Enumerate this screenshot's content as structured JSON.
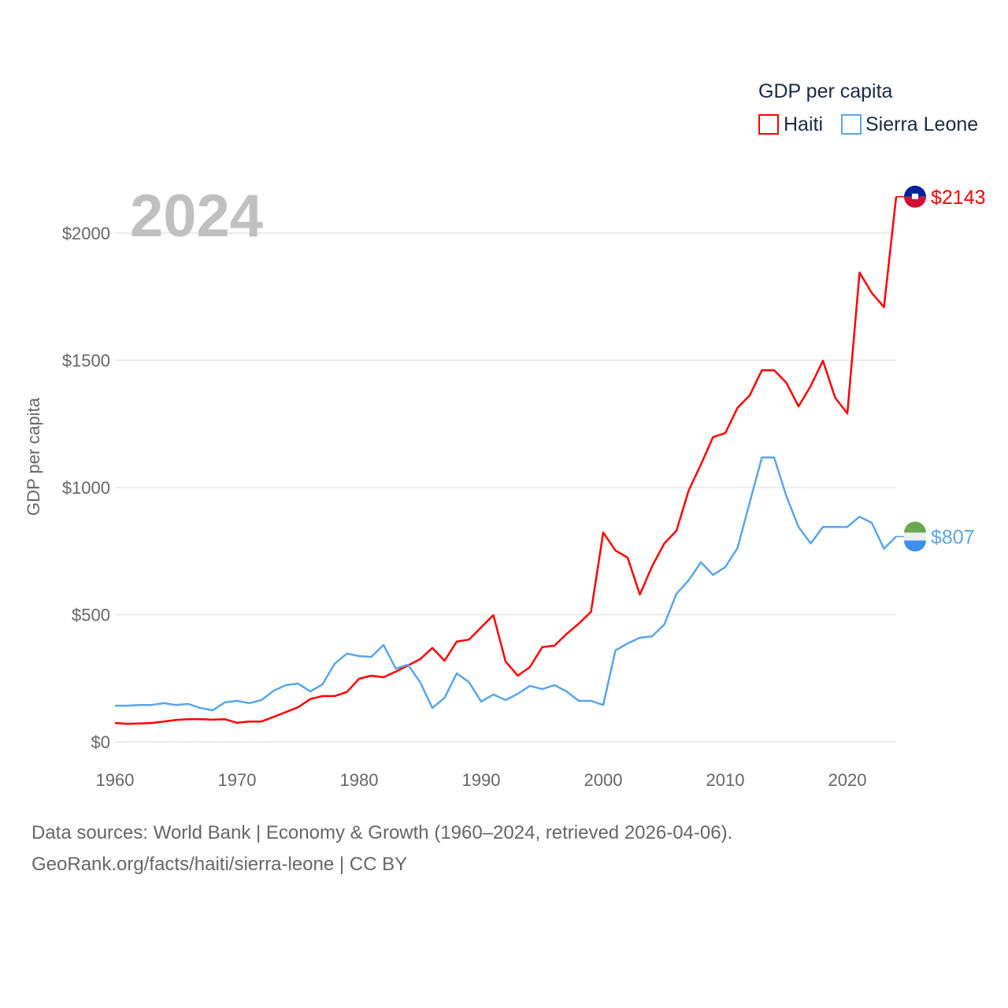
{
  "chart_data": {
    "type": "line",
    "title": "GDP per capita",
    "ylabel": "GDP per capita",
    "xlabel": "",
    "year_label": "2024",
    "xlim": [
      1960,
      2024
    ],
    "ylim": [
      0,
      2200
    ],
    "x_ticks": [
      1960,
      1970,
      1980,
      1990,
      2000,
      2010,
      2020
    ],
    "y_ticks": [
      0,
      500,
      1000,
      1500,
      2000
    ],
    "y_tick_labels": [
      "$0",
      "$500",
      "$1000",
      "$1500",
      "$2000"
    ],
    "grid": true,
    "legend_position": "top-right",
    "x": [
      1960,
      1961,
      1962,
      1963,
      1964,
      1965,
      1966,
      1967,
      1968,
      1969,
      1970,
      1971,
      1972,
      1973,
      1974,
      1975,
      1976,
      1977,
      1978,
      1979,
      1980,
      1981,
      1982,
      1983,
      1984,
      1985,
      1986,
      1987,
      1988,
      1989,
      1990,
      1991,
      1992,
      1993,
      1994,
      1995,
      1996,
      1997,
      1998,
      1999,
      2000,
      2001,
      2002,
      2003,
      2004,
      2005,
      2006,
      2007,
      2008,
      2009,
      2010,
      2011,
      2012,
      2013,
      2014,
      2015,
      2016,
      2017,
      2018,
      2019,
      2020,
      2021,
      2022,
      2023,
      2024
    ],
    "series": [
      {
        "name": "Haiti",
        "color": "#ff0000",
        "end_label": "$2143",
        "values": [
          74,
          71,
          72,
          74,
          80,
          86,
          89,
          89,
          87,
          89,
          75,
          80,
          80,
          98,
          117,
          136,
          168,
          180,
          180,
          196,
          248,
          260,
          254,
          276,
          300,
          325,
          369,
          319,
          394,
          402,
          450,
          498,
          316,
          260,
          294,
          372,
          378,
          424,
          465,
          511,
          823,
          752,
          724,
          579,
          690,
          780,
          830,
          988,
          1090,
          1198,
          1214,
          1313,
          1362,
          1461,
          1461,
          1412,
          1319,
          1399,
          1498,
          1353,
          1291,
          1845,
          1765,
          1709,
          2143
        ]
      },
      {
        "name": "Sierra Leone",
        "color": "#5aa5e8",
        "end_label": "$807",
        "values": [
          142,
          142,
          145,
          145,
          152,
          145,
          149,
          133,
          124,
          155,
          161,
          152,
          164,
          201,
          223,
          229,
          198,
          226,
          307,
          347,
          337,
          334,
          381,
          288,
          303,
          235,
          133,
          173,
          269,
          235,
          158,
          186,
          164,
          189,
          220,
          207,
          223,
          198,
          161,
          161,
          145,
          359,
          387,
          409,
          415,
          461,
          582,
          635,
          706,
          656,
          687,
          762,
          941,
          1118,
          1118,
          966,
          845,
          780,
          845,
          845,
          845,
          885,
          861,
          759,
          807
        ]
      }
    ]
  },
  "footer": {
    "line1": "Data sources: World Bank | Economy & Growth (1960–2024, retrieved 2026-04-06).",
    "line2": "GeoRank.org/facts/haiti/sierra-leone | CC BY"
  }
}
